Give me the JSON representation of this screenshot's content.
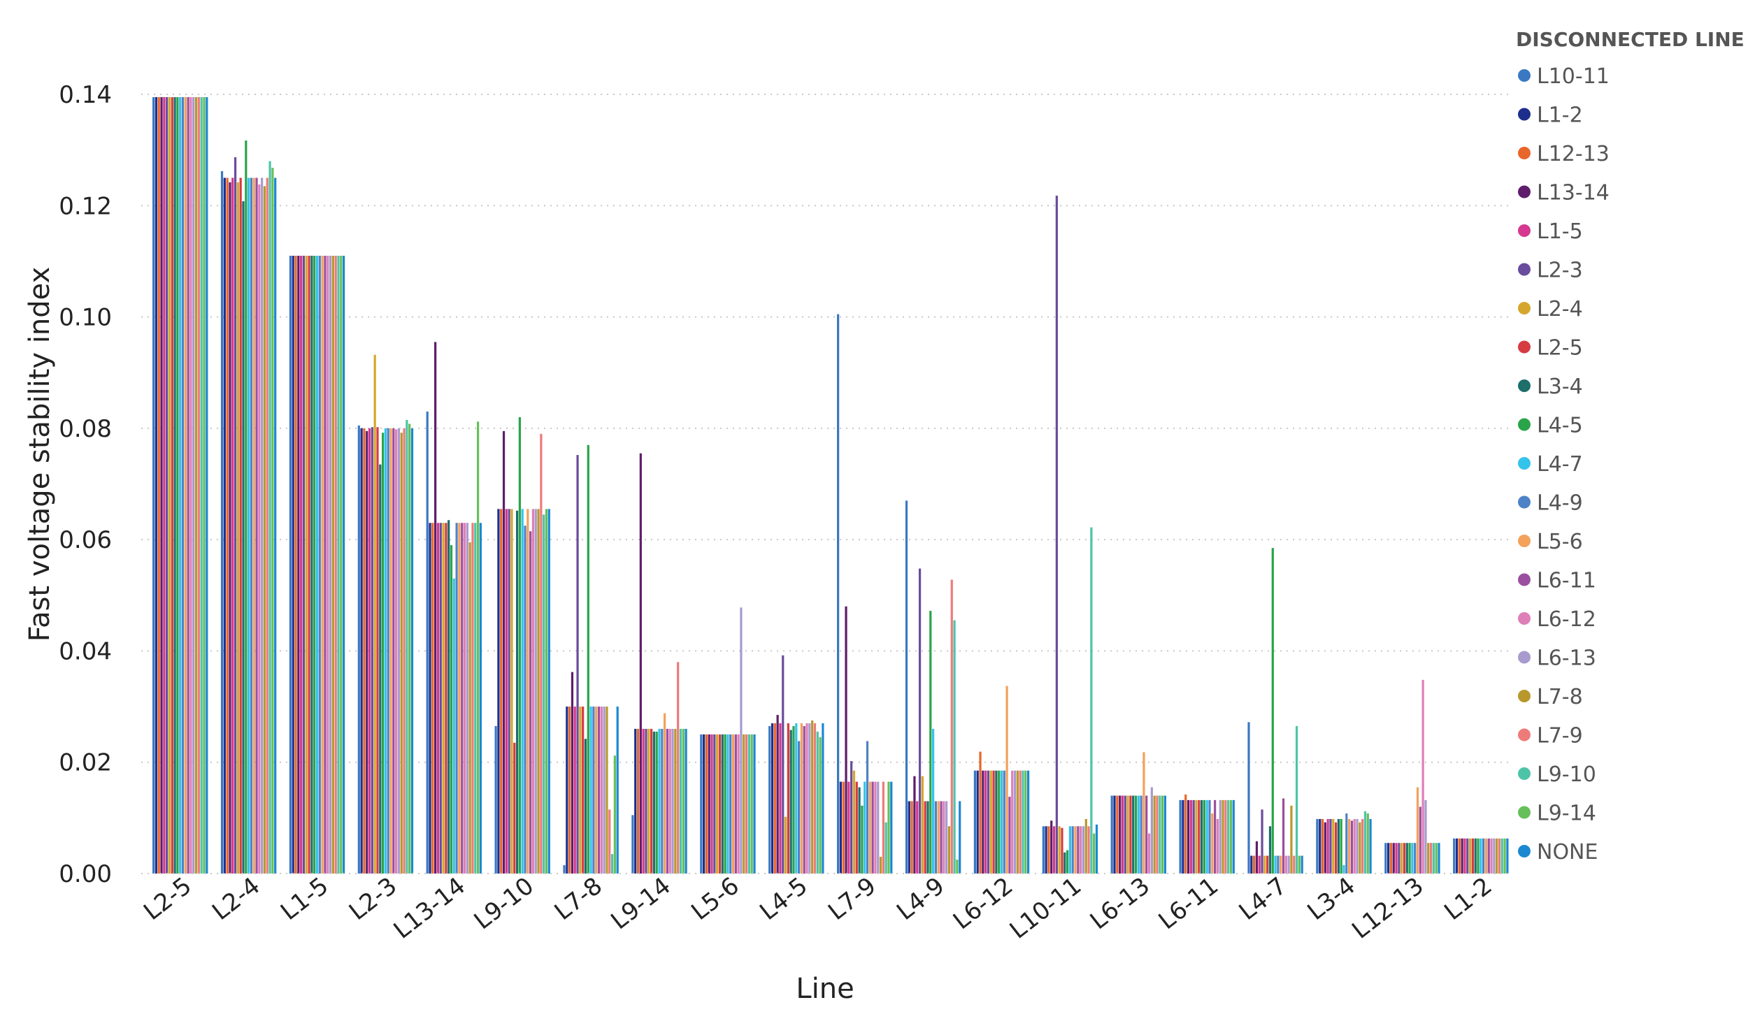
{
  "chart_data": {
    "type": "bar",
    "xlabel": "Line",
    "ylabel": "Fast voltage stability index",
    "ylim": [
      0,
      0.14
    ],
    "yticks": [
      "0.00",
      "0.02",
      "0.04",
      "0.06",
      "0.08",
      "0.10",
      "0.12",
      "0.14"
    ],
    "grid": true,
    "legend_title": "DISCONNECTED LINE",
    "legend_position": "right",
    "categories": [
      "L2-5",
      "L2-4",
      "L1-5",
      "L2-3",
      "L13-14",
      "L9-10",
      "L7-8",
      "L9-14",
      "L5-6",
      "L4-5",
      "L7-9",
      "L4-9",
      "L6-12",
      "L10-11",
      "L6-13",
      "L6-11",
      "L4-7",
      "L3-4",
      "L12-13",
      "L1-2"
    ],
    "series": [
      {
        "name": "L10-11",
        "color": "#3A78C3",
        "values": [
          0.1395,
          0.1262,
          0.111,
          0.0805,
          0.083,
          0.0265,
          0.0015,
          0.0105,
          0.025,
          0.0265,
          0.1005,
          0.067,
          0.0185,
          0.0085,
          0.014,
          0.0132,
          0.0272,
          0.0098,
          0.0055,
          0.0063
        ]
      },
      {
        "name": "L1-2",
        "color": "#1D2E8C",
        "values": [
          0.1395,
          0.125,
          0.111,
          0.08,
          0.063,
          0.0655,
          0.03,
          0.026,
          0.025,
          0.027,
          0.0165,
          0.013,
          0.0185,
          0.0085,
          0.014,
          0.0132,
          0.0032,
          0.0098,
          0.0055,
          0.0063
        ]
      },
      {
        "name": "L12-13",
        "color": "#E8662A",
        "values": [
          0.1395,
          0.125,
          0.111,
          0.08,
          0.063,
          0.0655,
          0.03,
          0.026,
          0.025,
          0.027,
          0.0165,
          0.013,
          0.0219,
          0.0085,
          0.014,
          0.0142,
          0.0032,
          0.0098,
          0.0055,
          0.0063
        ]
      },
      {
        "name": "L13-14",
        "color": "#5E1D6B",
        "values": [
          0.1395,
          0.1242,
          0.111,
          0.0795,
          0.0955,
          0.0795,
          0.0362,
          0.0755,
          0.025,
          0.0285,
          0.048,
          0.0175,
          0.0185,
          0.0095,
          0.014,
          0.0132,
          0.0058,
          0.0092,
          0.0055,
          0.0063
        ]
      },
      {
        "name": "L1-5",
        "color": "#D4388F",
        "values": [
          0.1395,
          0.125,
          0.111,
          0.08,
          0.063,
          0.0655,
          0.03,
          0.026,
          0.025,
          0.027,
          0.0165,
          0.013,
          0.0185,
          0.0085,
          0.014,
          0.0132,
          0.0032,
          0.0098,
          0.0055,
          0.0063
        ]
      },
      {
        "name": "L2-3",
        "color": "#6A4C9C",
        "values": [
          0.1395,
          0.1287,
          0.111,
          0.0802,
          0.063,
          0.0655,
          0.0752,
          0.026,
          0.025,
          0.0392,
          0.0202,
          0.0548,
          0.0185,
          0.1218,
          0.014,
          0.0132,
          0.0115,
          0.0098,
          0.0055,
          0.0063
        ]
      },
      {
        "name": "L2-4",
        "color": "#D4A72C",
        "values": [
          0.1395,
          0.1242,
          0.111,
          0.0932,
          0.063,
          0.0655,
          0.03,
          0.026,
          0.025,
          0.0102,
          0.0185,
          0.0175,
          0.0185,
          0.0085,
          0.014,
          0.0132,
          0.0032,
          0.0098,
          0.0055,
          0.0063
        ]
      },
      {
        "name": "L2-5",
        "color": "#D63B42",
        "values": [
          0.1395,
          0.125,
          0.111,
          0.0802,
          0.063,
          0.0235,
          0.03,
          0.026,
          0.025,
          0.027,
          0.0165,
          0.013,
          0.0185,
          0.0082,
          0.014,
          0.0132,
          0.0032,
          0.0092,
          0.0055,
          0.0063
        ]
      },
      {
        "name": "L3-4",
        "color": "#1E6E6B",
        "values": [
          0.1395,
          0.1208,
          0.111,
          0.0735,
          0.0635,
          0.0652,
          0.0242,
          0.0255,
          0.025,
          0.0258,
          0.0155,
          0.013,
          0.0185,
          0.0038,
          0.014,
          0.0132,
          0.0085,
          0.0098,
          0.0055,
          0.0063
        ]
      },
      {
        "name": "L4-5",
        "color": "#2AA44A",
        "values": [
          0.1395,
          0.1317,
          0.111,
          0.0792,
          0.059,
          0.082,
          0.077,
          0.0255,
          0.025,
          0.0265,
          0.0122,
          0.0472,
          0.0185,
          0.0042,
          0.014,
          0.0132,
          0.0585,
          0.0098,
          0.0055,
          0.0063
        ]
      },
      {
        "name": "L4-7",
        "color": "#34C3EA",
        "values": [
          0.1395,
          0.125,
          0.111,
          0.08,
          0.053,
          0.0655,
          0.03,
          0.026,
          0.025,
          0.027,
          0.0165,
          0.026,
          0.0185,
          0.0085,
          0.014,
          0.0132,
          0.0032,
          0.0015,
          0.0055,
          0.0063
        ]
      },
      {
        "name": "L4-9",
        "color": "#4E82C6",
        "values": [
          0.1395,
          0.125,
          0.111,
          0.08,
          0.063,
          0.0625,
          0.03,
          0.026,
          0.025,
          0.0238,
          0.0238,
          0.013,
          0.0185,
          0.0085,
          0.014,
          0.0132,
          0.0032,
          0.0108,
          0.0055,
          0.0063
        ]
      },
      {
        "name": "L5-6",
        "color": "#F3A15B",
        "values": [
          0.1395,
          0.125,
          0.111,
          0.08,
          0.063,
          0.0655,
          0.03,
          0.0288,
          0.025,
          0.027,
          0.0165,
          0.013,
          0.0337,
          0.0085,
          0.0218,
          0.0108,
          0.0032,
          0.0098,
          0.0155,
          0.0063
        ]
      },
      {
        "name": "L6-11",
        "color": "#9A509E",
        "values": [
          0.1395,
          0.125,
          0.111,
          0.08,
          0.063,
          0.0615,
          0.03,
          0.026,
          0.025,
          0.0265,
          0.0165,
          0.013,
          0.0138,
          0.0085,
          0.014,
          0.0132,
          0.0135,
          0.0095,
          0.012,
          0.0063
        ]
      },
      {
        "name": "L6-12",
        "color": "#DE7FB8",
        "values": [
          0.1395,
          0.1238,
          0.111,
          0.0798,
          0.063,
          0.0655,
          0.03,
          0.026,
          0.025,
          0.027,
          0.0165,
          0.013,
          0.0185,
          0.0085,
          0.0072,
          0.0098,
          0.0032,
          0.0098,
          0.0348,
          0.0063
        ]
      },
      {
        "name": "L6-13",
        "color": "#A89ACE",
        "values": [
          0.1395,
          0.125,
          0.111,
          0.08,
          0.063,
          0.0655,
          0.03,
          0.026,
          0.0478,
          0.027,
          0.0165,
          0.013,
          0.0185,
          0.0085,
          0.0155,
          0.0132,
          0.0032,
          0.0098,
          0.0132,
          0.0063
        ]
      },
      {
        "name": "L7-8",
        "color": "#B8982C",
        "values": [
          0.1395,
          0.1235,
          0.111,
          0.0792,
          0.0595,
          0.0655,
          0.03,
          0.026,
          0.025,
          0.0275,
          0.003,
          0.0085,
          0.0185,
          0.0098,
          0.014,
          0.0132,
          0.0122,
          0.0092,
          0.0055,
          0.0063
        ]
      },
      {
        "name": "L7-9",
        "color": "#EE7A7A",
        "values": [
          0.1395,
          0.125,
          0.111,
          0.08,
          0.063,
          0.079,
          0.0115,
          0.038,
          0.025,
          0.027,
          0.0165,
          0.0528,
          0.0185,
          0.0085,
          0.014,
          0.0132,
          0.0032,
          0.0098,
          0.0055,
          0.0063
        ]
      },
      {
        "name": "L9-10",
        "color": "#4DC4A8",
        "values": [
          0.1395,
          0.128,
          0.111,
          0.0815,
          0.063,
          0.0645,
          0.0035,
          0.026,
          0.025,
          0.0255,
          0.0092,
          0.0455,
          0.0185,
          0.0622,
          0.014,
          0.0132,
          0.0265,
          0.0112,
          0.0055,
          0.0063
        ]
      },
      {
        "name": "L9-14",
        "color": "#66BF5A",
        "values": [
          0.1395,
          0.1268,
          0.111,
          0.0808,
          0.0812,
          0.0655,
          0.0212,
          0.026,
          0.025,
          0.0245,
          0.0165,
          0.0025,
          0.0185,
          0.0072,
          0.014,
          0.0132,
          0.0032,
          0.0108,
          0.0055,
          0.0063
        ]
      },
      {
        "name": "NONE",
        "color": "#1B88D2",
        "values": [
          0.1395,
          0.125,
          0.111,
          0.08,
          0.063,
          0.0655,
          0.03,
          0.026,
          0.025,
          0.027,
          0.0165,
          0.013,
          0.0185,
          0.0088,
          0.014,
          0.0132,
          0.0032,
          0.0098,
          0.0055,
          0.0063
        ]
      }
    ]
  }
}
